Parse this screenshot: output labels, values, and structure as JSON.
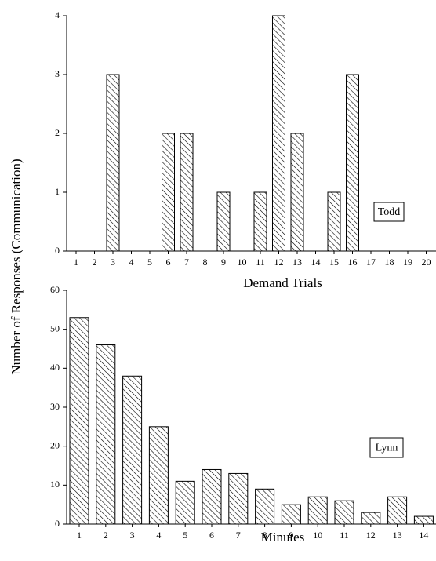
{
  "ylabel": "Number of Responses (Communication)",
  "chart_data": [
    {
      "type": "bar",
      "annotation": "Todd",
      "xlabel": "Demand Trials",
      "categories": [
        "1",
        "2",
        "3",
        "4",
        "5",
        "6",
        "7",
        "8",
        "9",
        "10",
        "11",
        "12",
        "13",
        "14",
        "15",
        "16",
        "17",
        "18",
        "19",
        "20"
      ],
      "values": [
        0,
        0,
        3,
        0,
        0,
        2,
        2,
        0,
        1,
        0,
        1,
        4,
        2,
        0,
        1,
        3,
        0,
        0,
        0,
        0
      ],
      "color": "#000000",
      "ylim": [
        0,
        4
      ],
      "yticks": [
        0,
        1,
        2,
        3,
        4
      ]
    },
    {
      "type": "bar",
      "annotation": "Lynn",
      "xlabel": "Minutes",
      "categories": [
        "1",
        "2",
        "3",
        "4",
        "5",
        "6",
        "7",
        "8",
        "9",
        "10",
        "11",
        "12",
        "13",
        "14"
      ],
      "values": [
        53,
        46,
        38,
        25,
        11,
        14,
        13,
        9,
        5,
        7,
        6,
        3,
        7,
        2
      ],
      "color": "#000000",
      "ylim": [
        0,
        60
      ],
      "yticks": [
        0,
        10,
        20,
        30,
        40,
        50,
        60
      ]
    }
  ]
}
